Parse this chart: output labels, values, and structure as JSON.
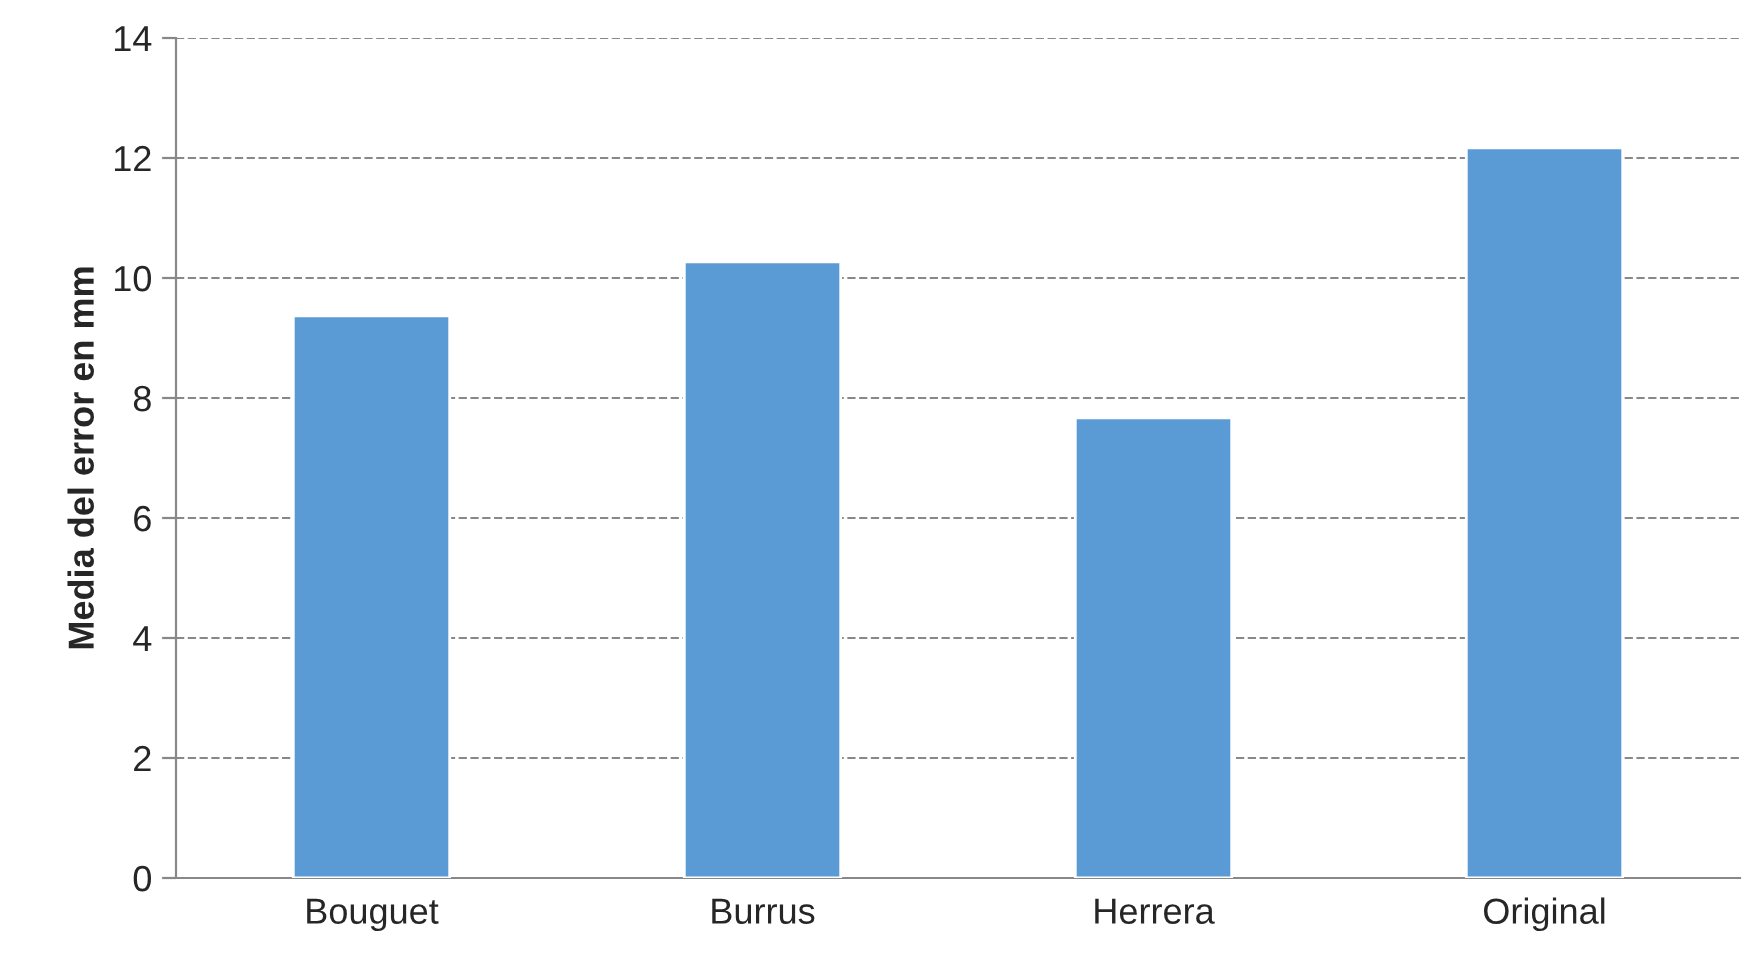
{
  "chart_data": {
    "type": "bar",
    "ylabel": "Media del error en mm",
    "categories": [
      "Bouguet",
      "Burrus",
      "Herrera",
      "Original"
    ],
    "values": [
      9.37,
      10.27,
      7.67,
      12.17
    ],
    "color": "#5b9bd5",
    "ylim": [
      0,
      14
    ],
    "yticks": [
      0,
      2,
      4,
      6,
      8,
      10,
      12,
      14
    ],
    "grid": "y"
  }
}
